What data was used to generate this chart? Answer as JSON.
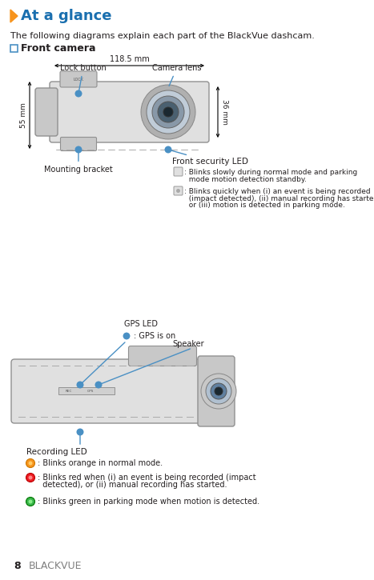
{
  "title": "At a glance",
  "subtitle": "The following diagrams explain each part of the BlackVue dashcam.",
  "section_front": "Front camera",
  "page_number": "8",
  "page_brand": "BLACKVUE",
  "front_camera": {
    "width_label": "118.5 mm",
    "height_label": "36 mm",
    "side_label": "55 mm",
    "label_lock": "Lock button",
    "label_lens": "Camera lens",
    "label_bracket": "Mounting bracket",
    "label_led": "Front security LED",
    "led1_line1": ": Blinks slowly during normal mode and parking",
    "led1_line2": "  mode motion detection standby.",
    "led2_line1": ": Blinks quickly when (i) an event is being recorded",
    "led2_line2": "  (impact detected), (ii) manual recording has started,",
    "led2_line3": "  or (iii) motion is detected in parking mode."
  },
  "rear_camera": {
    "label_gps": "GPS LED",
    "label_gps_desc": ": GPS is on",
    "label_speaker": "Speaker",
    "label_rec": "Recording LED",
    "led1": ": Blinks orange in normal mode.",
    "led2_line1": ": Blinks red when (i) an event is being recorded (impact",
    "led2_line2": "  detected), or (ii) manual recording has started.",
    "led3": ": Blinks green in parking mode when motion is detected."
  },
  "colors": {
    "title_blue": "#1a6faf",
    "arrow_blue": "#4a90c4",
    "dot_blue": "#4a90c4",
    "text_dark": "#231f20",
    "text_gray": "#808080",
    "orange_led": "#f7941d",
    "red_led": "#ed1c24",
    "green_led": "#39b54a",
    "background": "#ffffff",
    "cam_body": "#e0e0e0",
    "cam_edge": "#909090",
    "cam_dark": "#c8c8c8"
  }
}
